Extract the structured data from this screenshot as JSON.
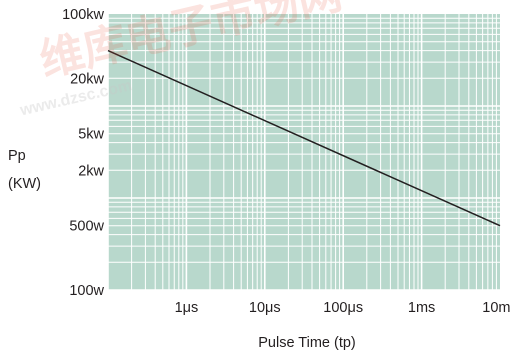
{
  "chart_data": {
    "type": "line",
    "scale": "log-log",
    "xlabel": "Pulse Time (tp)",
    "ylabel_lines": [
      "Pp",
      "(KW)"
    ],
    "x_ticks": [
      {
        "value": 1e-06,
        "label": "1μs"
      },
      {
        "value": 1e-05,
        "label": "10μs"
      },
      {
        "value": 0.0001,
        "label": "100μs"
      },
      {
        "value": 0.001,
        "label": "1ms"
      },
      {
        "value": 0.01,
        "label": "10ms"
      }
    ],
    "y_ticks": [
      {
        "value": 100000,
        "label": "100kw"
      },
      {
        "value": 20000,
        "label": "20kw"
      },
      {
        "value": 5000,
        "label": "5kw"
      },
      {
        "value": 2000,
        "label": "2kw"
      },
      {
        "value": 500,
        "label": "500w"
      },
      {
        "value": 100,
        "label": "100w"
      }
    ],
    "xlim": [
      1e-07,
      0.01
    ],
    "ylim": [
      100,
      100000
    ],
    "grid": true,
    "background_color": "#b8d8cc",
    "grid_color": "#ffffff",
    "line_color": "#231f20",
    "series": [
      {
        "x": [
          1e-07,
          0.01
        ],
        "y": [
          40000,
          500
        ]
      }
    ]
  },
  "watermark": {
    "main": "维库电子市场网",
    "sub": "www.dzsc.com"
  }
}
